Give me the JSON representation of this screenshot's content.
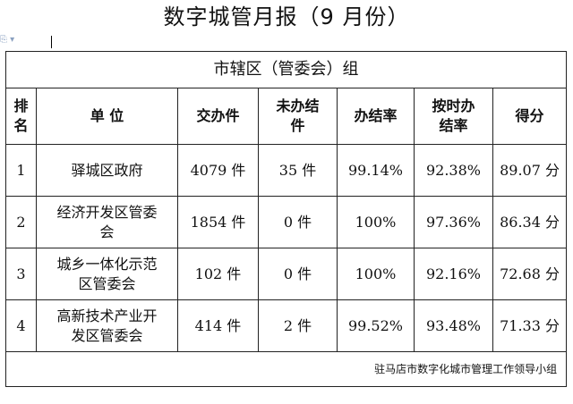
{
  "title": "数字城管月报（9 月份）",
  "group_title": "市辖区（管委会）组",
  "headers": {
    "rank": "排名",
    "unit": "单 位",
    "submitted": "交办件",
    "unfinished": "未办结件",
    "completion_rate": "办结率",
    "ontime_rate": "按时办结率",
    "score": "得分"
  },
  "rows": [
    {
      "rank": "1",
      "unit": "驿城区政府",
      "submitted": "4079 件",
      "unfinished": "35 件",
      "completion_rate": "99.14%",
      "ontime_rate": "92.38%",
      "score": "89.07 分"
    },
    {
      "rank": "2",
      "unit": "经济开发区管委会",
      "submitted": "1854 件",
      "unfinished": "0 件",
      "completion_rate": "100%",
      "ontime_rate": "97.36%",
      "score": "86.34 分"
    },
    {
      "rank": "3",
      "unit": "城乡一体化示范区管委会",
      "submitted": "102 件",
      "unfinished": "0 件",
      "completion_rate": "100%",
      "ontime_rate": "92.16%",
      "score": "72.68 分"
    },
    {
      "rank": "4",
      "unit": "高新技术产业开发区管委会",
      "submitted": "414 件",
      "unfinished": "2 件",
      "completion_rate": "99.52%",
      "ontime_rate": "93.48%",
      "score": "71.33 分"
    }
  ],
  "footer": "驻马店市数字化城市管理工作领导小组",
  "anchor_icon": "paragraph-anchor-icon"
}
